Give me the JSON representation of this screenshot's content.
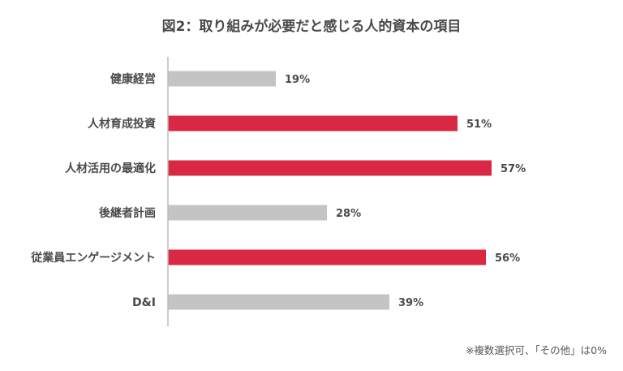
{
  "chart_data": {
    "type": "bar",
    "orientation": "horizontal",
    "title": "図2：取り組みが必要だと感じる人的資本の項目",
    "categories": [
      "健康経営",
      "人材育成投資",
      "人材活用の最適化",
      "後継者計画",
      "従業員エンゲージメント",
      "D&I"
    ],
    "values": [
      19,
      51,
      57,
      28,
      56,
      39
    ],
    "value_labels": [
      "19%",
      "51%",
      "57%",
      "28%",
      "56%",
      "39%"
    ],
    "highlighted": [
      false,
      true,
      true,
      false,
      true,
      false
    ],
    "xlim": [
      0,
      100
    ],
    "colors": {
      "highlight": "#d92843",
      "normal": "#c4c4c4",
      "axis": "#bbbbbb"
    },
    "grid": false,
    "legend": "none",
    "footnote": "※複数選択可、「その他」は0%"
  }
}
